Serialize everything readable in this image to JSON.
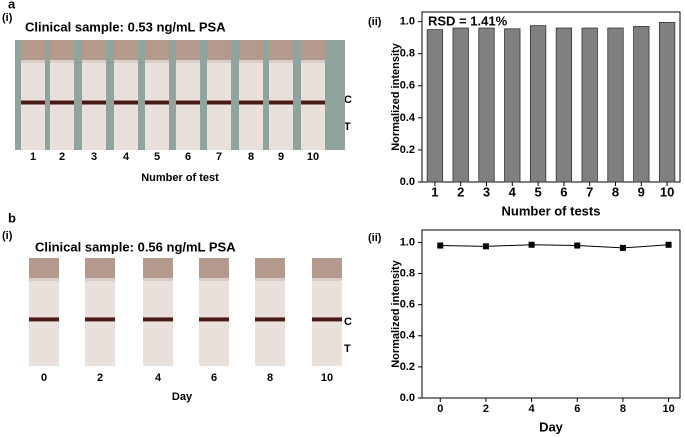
{
  "panels": {
    "a": {
      "letter": "a",
      "sub": "(i)",
      "title": "Clinical sample: 0.53 ng/mL PSA",
      "strips": [
        "1",
        "2",
        "3",
        "4",
        "5",
        "6",
        "7",
        "8",
        "9",
        "10"
      ],
      "c": "C",
      "t": "T",
      "xlabel": "Number of test",
      "chart_sub": "(ii)"
    },
    "b": {
      "letter": "b",
      "sub": "(i)",
      "title": "Clinical sample: 0.56 ng/mL PSA",
      "strips": [
        "0",
        "2",
        "4",
        "6",
        "8",
        "10"
      ],
      "c": "C",
      "t": "T",
      "xlabel": "Day",
      "chart_sub": "(ii)"
    }
  },
  "chart_data": [
    {
      "type": "bar",
      "annotation": "RSD = 1.41%",
      "xlabel": "Number of tests",
      "ylabel": "Normalized intensity",
      "color": "#808080",
      "categories": [
        "1",
        "2",
        "3",
        "4",
        "5",
        "6",
        "7",
        "8",
        "9",
        "10"
      ],
      "values": [
        0.95,
        0.96,
        0.96,
        0.955,
        0.975,
        0.96,
        0.96,
        0.96,
        0.97,
        0.995
      ],
      "ylim": [
        0,
        1.06
      ],
      "yticks": [
        {
          "value": 0,
          "label": "0.0"
        },
        {
          "value": 0.2,
          "label": "0.2"
        },
        {
          "value": 0.4,
          "label": "0.4"
        },
        {
          "value": 0.6,
          "label": "0.6"
        },
        {
          "value": 0.8,
          "label": "0.8"
        },
        {
          "value": 1,
          "label": "1.0"
        }
      ]
    },
    {
      "type": "line",
      "xlabel": "Day",
      "ylabel": "Normalized intensity",
      "color": "#000000",
      "x": [
        0,
        2,
        4,
        6,
        8,
        10
      ],
      "values": [
        0.98,
        0.975,
        0.985,
        0.98,
        0.965,
        0.985
      ],
      "xlim": [
        -0.8,
        10.5
      ],
      "xticks": [
        0,
        2,
        4,
        6,
        8,
        10
      ],
      "ylim": [
        0,
        1.08
      ],
      "yticks": [
        {
          "value": 0,
          "label": "0.0"
        },
        {
          "value": 0.2,
          "label": "0.2"
        },
        {
          "value": 0.4,
          "label": "0.4"
        },
        {
          "value": 0.6,
          "label": "0.6"
        },
        {
          "value": 0.8,
          "label": "0.8"
        },
        {
          "value": 1,
          "label": "1.0"
        }
      ]
    }
  ]
}
